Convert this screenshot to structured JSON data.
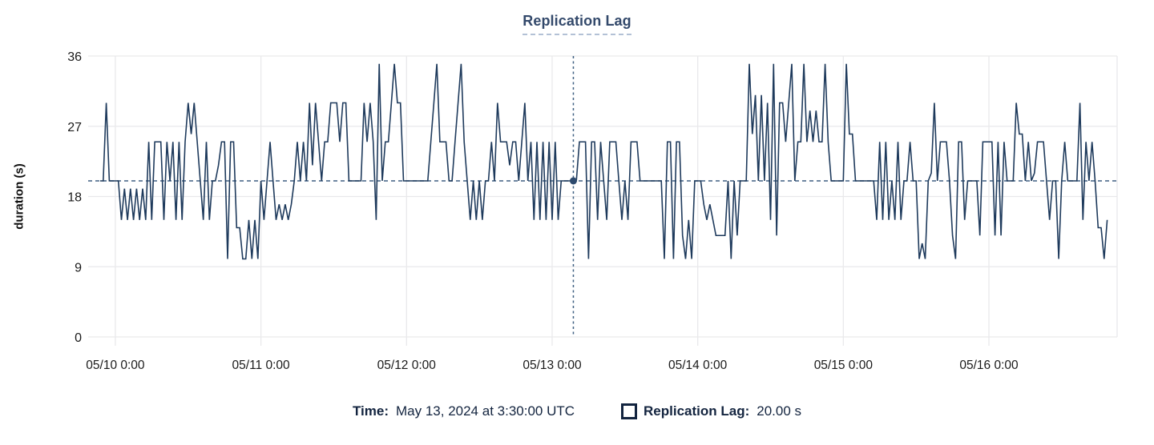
{
  "title": "Replication Lag",
  "y_axis": {
    "label": "duration (s)",
    "ticks": [
      0,
      9,
      18,
      27,
      36
    ]
  },
  "x_axis": {
    "ticks": [
      "05/10 0:00",
      "05/11 0:00",
      "05/12 0:00",
      "05/13 0:00",
      "05/14 0:00",
      "05/15 0:00",
      "05/16 0:00"
    ]
  },
  "legend": {
    "time_label": "Time:",
    "time_value": "May 13, 2024 at 3:30:00 UTC",
    "swatch_icon": "square-outline-icon",
    "series_label": "Replication Lag:",
    "series_value": "20.00 s"
  },
  "colors": {
    "line": "#1e3a5c",
    "dashed_guides": "#3e5f82",
    "marker_dot": "#2d4a6e",
    "grid": "#e9e9eb",
    "tick": "#c9cbce",
    "axis_text": "#1a1a1a",
    "title_text": "#33496b",
    "legend_text": "#13243f"
  },
  "chart_data": {
    "type": "line",
    "title": "Replication Lag",
    "series_name": "Replication Lag",
    "unit": "s",
    "ylabel": "duration (s)",
    "ylim": [
      0,
      36
    ],
    "y_ticks": [
      0,
      9,
      18,
      27,
      36
    ],
    "x_tick_labels": [
      "05/10 0:00",
      "05/11 0:00",
      "05/12 0:00",
      "05/13 0:00",
      "05/14 0:00",
      "05/15 0:00",
      "05/16 0:00"
    ],
    "x_start_utc": "2024-05-09 21:30",
    "x_interval_minutes": 30,
    "grid": true,
    "legend_position": "bottom",
    "threshold_value": 20,
    "selected_point": {
      "time": "May 13, 2024 at 3:30:00 UTC",
      "value": 20,
      "index": 156
    },
    "values": [
      20,
      20,
      30,
      20,
      20,
      20,
      20,
      15,
      19,
      15,
      19,
      15,
      19,
      15,
      19,
      15,
      25,
      15,
      25,
      25,
      25,
      15,
      25,
      20,
      25,
      15,
      25,
      15,
      25,
      30,
      26,
      30,
      25,
      20,
      15,
      25,
      15,
      20,
      20,
      22,
      25,
      25,
      10,
      25,
      25,
      14,
      14,
      10,
      10,
      15,
      10,
      15,
      10,
      20,
      15,
      20,
      25,
      20,
      15,
      17,
      15,
      17,
      15,
      17,
      20,
      25,
      20,
      25,
      20,
      30,
      22,
      30,
      25,
      20,
      25,
      25,
      30,
      30,
      30,
      25,
      30,
      30,
      20,
      20,
      20,
      20,
      20,
      30,
      25,
      30,
      25,
      15,
      35,
      20,
      25,
      25,
      30,
      35,
      30,
      30,
      20,
      20,
      20,
      20,
      20,
      20,
      20,
      20,
      20,
      25,
      30,
      35,
      25,
      25,
      25,
      20,
      20,
      25,
      30,
      35,
      25,
      20,
      15,
      20,
      15,
      20,
      15,
      20,
      20,
      25,
      20,
      30,
      25,
      25,
      25,
      22,
      25,
      25,
      20,
      25,
      30,
      20,
      25,
      15,
      25,
      15,
      25,
      15,
      25,
      15,
      25,
      15,
      20,
      20,
      20,
      20,
      20,
      20,
      25,
      25,
      25,
      10,
      25,
      25,
      15,
      25,
      20,
      15,
      25,
      25,
      25,
      20,
      15,
      20,
      15,
      25,
      25,
      25,
      20,
      20,
      20,
      20,
      20,
      20,
      20,
      20,
      10,
      25,
      25,
      10,
      25,
      25,
      13,
      10,
      15,
      10,
      20,
      20,
      20,
      17,
      15,
      17,
      15,
      13,
      13,
      13,
      13,
      20,
      10,
      20,
      13,
      20,
      20,
      20,
      35,
      26,
      31,
      20,
      31,
      20,
      30,
      15,
      35,
      13,
      30,
      30,
      25,
      30,
      35,
      20,
      25,
      25,
      35,
      25,
      29,
      25,
      29,
      25,
      25,
      35,
      25,
      20,
      20,
      20,
      20,
      20,
      35,
      26,
      26,
      20,
      20,
      20,
      20,
      20,
      20,
      20,
      15,
      25,
      15,
      25,
      15,
      20,
      15,
      25,
      15,
      20,
      20,
      25,
      20,
      20,
      10,
      12,
      10,
      20,
      21,
      30,
      20,
      25,
      25,
      25,
      20,
      13,
      10,
      25,
      25,
      15,
      20,
      20,
      20,
      20,
      13,
      25,
      25,
      25,
      25,
      13,
      25,
      13,
      25,
      20,
      20,
      20,
      30,
      26,
      26,
      20,
      25,
      20,
      21,
      25,
      25,
      25,
      20,
      15,
      20,
      20,
      10,
      20,
      25,
      20,
      20,
      20,
      20,
      30,
      15,
      25,
      20,
      25,
      20,
      14,
      14,
      10,
      15
    ]
  }
}
